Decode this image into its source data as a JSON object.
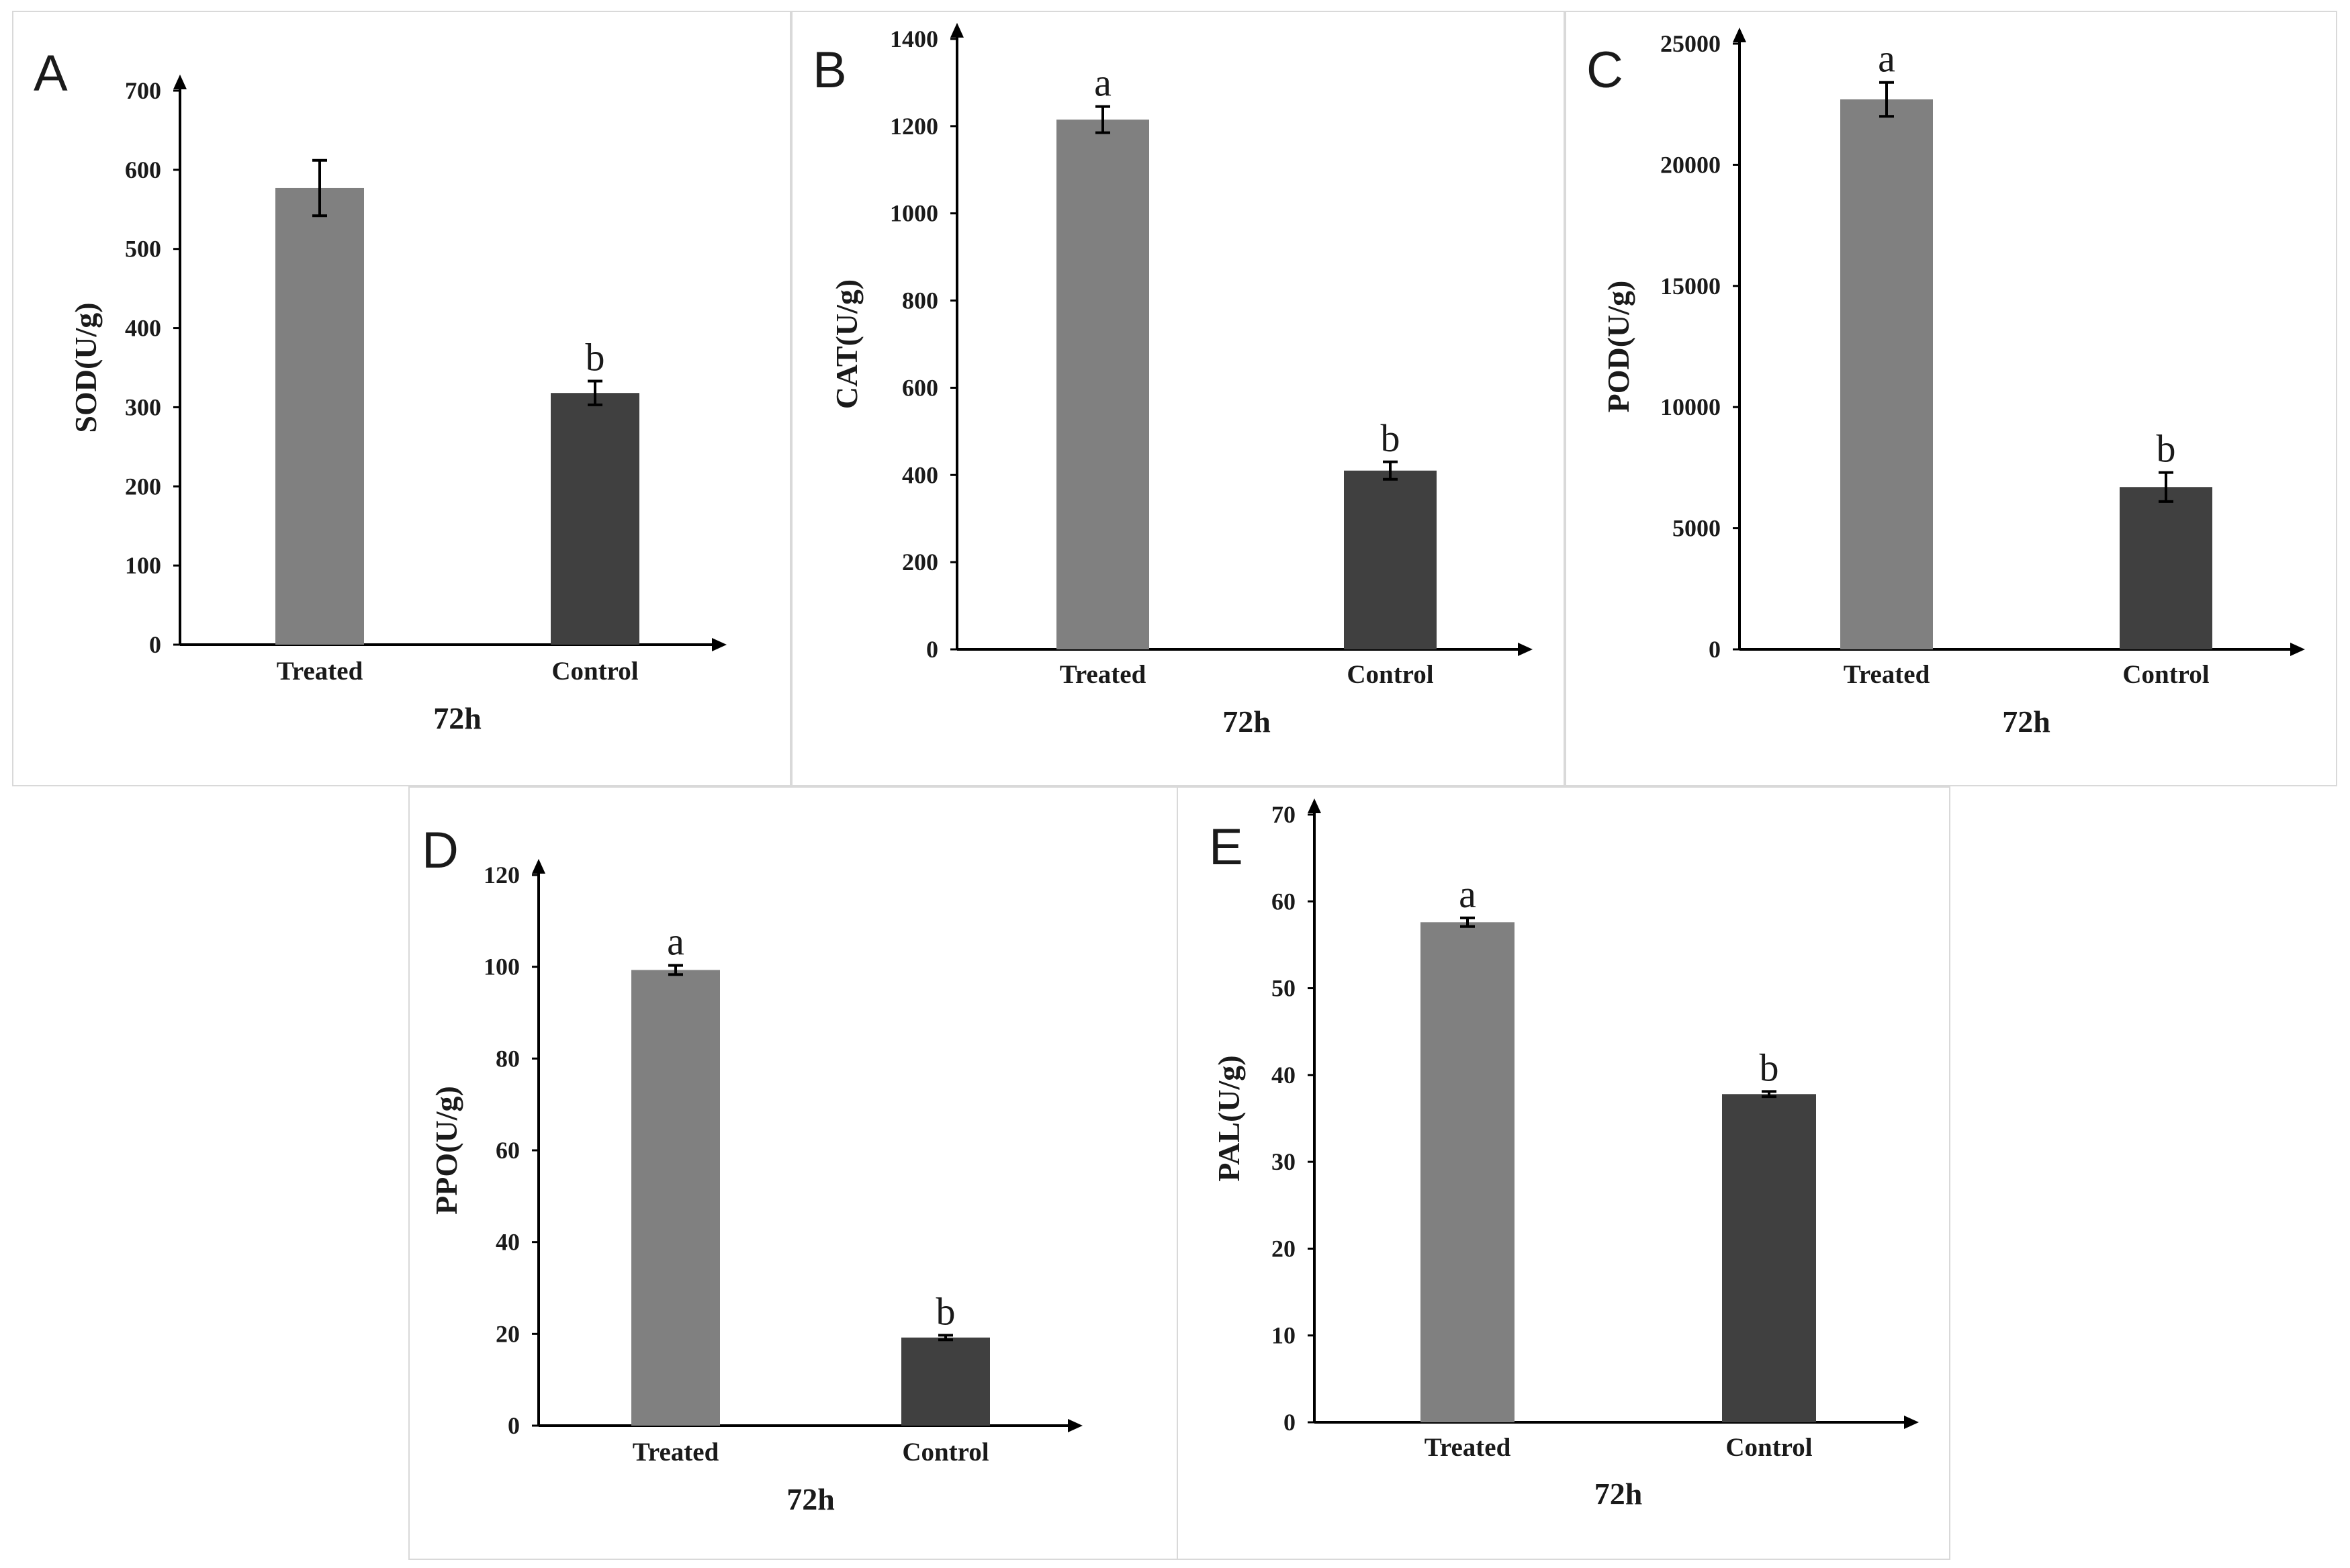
{
  "colors": {
    "treated": "#808080",
    "control": "#404040",
    "axis": "#000000",
    "frame": "#d9d9d9"
  },
  "chart_data": [
    {
      "type": "bar",
      "panel": "A",
      "categories": [
        "Treated",
        "Control"
      ],
      "values": [
        577,
        318
      ],
      "errors": [
        35,
        15
      ],
      "significance": [
        "",
        "b"
      ],
      "ylabel": "SOD(U/g)",
      "xlabel": "72h",
      "ylim": [
        0,
        700
      ],
      "yticks": [
        "0",
        "100",
        "200",
        "300",
        "400",
        "500",
        "600",
        "700"
      ]
    },
    {
      "type": "bar",
      "panel": "B",
      "categories": [
        "Treated",
        "Control"
      ],
      "values": [
        1215,
        410
      ],
      "errors": [
        30,
        20
      ],
      "significance": [
        "a",
        "b"
      ],
      "ylabel": "CAT(U/g)",
      "xlabel": "72h",
      "ylim": [
        0,
        1400
      ],
      "yticks": [
        "0",
        "200",
        "400",
        "600",
        "800",
        "1000",
        "1200",
        "1400"
      ]
    },
    {
      "type": "bar",
      "panel": "C",
      "categories": [
        "Treated",
        "Control"
      ],
      "values": [
        22700,
        6700
      ],
      "errors": [
        700,
        600
      ],
      "significance": [
        "a",
        "b"
      ],
      "ylabel": "POD(U/g)",
      "xlabel": "72h",
      "ylim": [
        0,
        25000
      ],
      "yticks": [
        "0",
        "5000",
        "10000",
        "15000",
        "20000",
        "25000"
      ]
    },
    {
      "type": "bar",
      "panel": "D",
      "categories": [
        "Treated",
        "Control"
      ],
      "values": [
        99.3,
        19.2
      ],
      "errors": [
        1.0,
        0.5
      ],
      "significance": [
        "a",
        "b"
      ],
      "ylabel": "PPO(U/g)",
      "xlabel": "72h",
      "ylim": [
        0,
        120
      ],
      "yticks": [
        "0",
        "20",
        "40",
        "60",
        "80",
        "100",
        "120"
      ]
    },
    {
      "type": "bar",
      "panel": "E",
      "categories": [
        "Treated",
        "Control"
      ],
      "values": [
        57.6,
        37.8
      ],
      "errors": [
        0.5,
        0.3
      ],
      "significance": [
        "a",
        "b"
      ],
      "ylabel": "PAL(U/g)",
      "xlabel": "72h",
      "ylim": [
        0,
        70
      ],
      "yticks": [
        "0",
        "10",
        "20",
        "30",
        "40",
        "50",
        "60",
        "70"
      ]
    }
  ]
}
